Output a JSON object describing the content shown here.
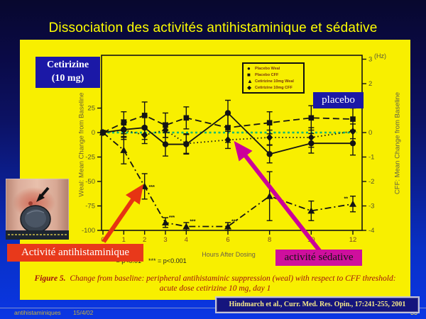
{
  "slide": {
    "title": "Dissociation des activités antihistaminique et sédative",
    "citation": "Hindmarch et al., Curr. Med. Res. Opin., 17:241-255, 2001",
    "footer": {
      "filename": "antihistaminiques",
      "date": "15/4/02",
      "page": "33"
    }
  },
  "labels": {
    "cetirizine_line1": "Cetirizine",
    "cetirizine_line2": "(10 mg)",
    "placebo": "placebo",
    "antihistamine_activity": "Activité antihistaminique",
    "sedative_activity": "activité sédative",
    "pvalue_note": "** = p<0.01    *** = p<0.001"
  },
  "figure_caption": {
    "prefix": "Figure 5.",
    "line1": "Change from baseline: peripheral antihistaminic suppression (weal) with respect to CFF threshold:",
    "line2": "acute dose cetirizine 10 mg, day 1"
  },
  "chart_data": {
    "type": "line",
    "x": [
      0,
      1,
      2,
      3,
      4,
      6,
      8,
      10,
      12
    ],
    "xticklabels": [
      "0",
      "1",
      "2",
      "3",
      "4",
      "6",
      "8",
      "10",
      "12"
    ],
    "xlabel": "Hours After Dosing",
    "ylabel_left": "Weal: Mean Change from Baseline",
    "ylabel_right": "CFF: Mean Change from Baseline",
    "right_axis_unit": "(Hz)",
    "ylim_left": [
      -100,
      75
    ],
    "yticks_left": [
      25,
      0,
      -25,
      -50,
      -75,
      -100
    ],
    "ylim_right": [
      -4,
      3
    ],
    "yticks_right": [
      3,
      2,
      0,
      -1,
      -2,
      -3,
      -4
    ],
    "grid": false,
    "legend_position": "top-center-inside",
    "zero_line": {
      "value": 0,
      "style": "dotted",
      "color": "#00b878"
    },
    "series": [
      {
        "name": "Placebo Weal",
        "axis": "left",
        "marker": "circle",
        "line": "solid",
        "values": [
          0,
          3,
          5,
          -12,
          -12,
          20,
          -22,
          -11,
          -11
        ],
        "errors": [
          0,
          10,
          12,
          12,
          10,
          13,
          9,
          10,
          12
        ]
      },
      {
        "name": "Placebo CFF",
        "axis": "right",
        "marker": "square",
        "line": "dashed",
        "values": [
          0,
          0.4,
          0.7,
          0.3,
          0.6,
          0.2,
          0.4,
          0.6,
          0.55
        ],
        "errors": [
          0,
          0.45,
          0.55,
          0.5,
          0.45,
          0.6,
          0.45,
          0.5,
          0.45
        ]
      },
      {
        "name": "Cetirizine 10mg Weal",
        "axis": "left",
        "marker": "triangle",
        "line": "dashdot",
        "values": [
          0,
          -18,
          -55,
          -92,
          -96,
          -96,
          -65,
          -80,
          -73
        ],
        "errors": [
          0,
          14,
          13,
          5,
          4,
          4,
          25,
          10,
          8
        ],
        "significance": {
          "2": "***",
          "3": "***",
          "4": "***",
          "6": "***",
          "12": "**"
        }
      },
      {
        "name": "Cetirizine 10mg CFF",
        "axis": "right",
        "marker": "diamond",
        "line": "dotted",
        "values": [
          0,
          0.1,
          -0.1,
          0.1,
          -0.45,
          -0.3,
          -0.2,
          -0.2,
          0.05
        ],
        "errors": [
          0,
          0.3,
          0.35,
          0.3,
          0.4,
          0.35,
          0.3,
          0.4,
          0.3
        ]
      }
    ]
  },
  "colors": {
    "slide_bg_top": "#08082e",
    "slide_bg_bottom": "#0a36e4",
    "panel_yellow": "#f8ef00",
    "title_yellow": "#ffff00",
    "navy_box": "#1b18a6",
    "red_box": "#e8391b",
    "magenta_box": "#cf0f9d",
    "arrow_red": "#e63312",
    "arrow_magenta": "#cc0099",
    "zero_line_green": "#00b878",
    "caption_maroon": "#a01010",
    "series_black": "#141414"
  }
}
